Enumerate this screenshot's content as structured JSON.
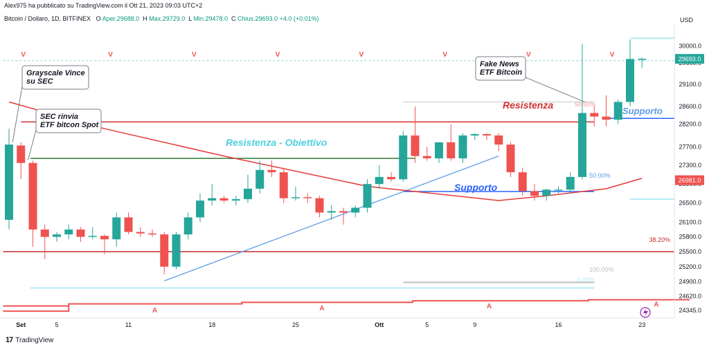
{
  "header": {
    "published": "Alex975 ha pubblicato su TradingView.com il Ott 21, 2023 09:03 UTC+2",
    "symbol": "Bitcoin / Dollaro, 1D, BITFINEX",
    "open_label": "O",
    "open_value": "Aper.29688.0",
    "high_label": "H",
    "high_value": "Max.29729.0",
    "low_label": "L",
    "low_value": "Min.29478.0",
    "close_label": "C",
    "close_value": "Chius.29693.0",
    "change": "+4.0 (+0.01%)"
  },
  "footer": {
    "brand_mark": "17",
    "brand": "TradingView"
  },
  "colors": {
    "up": "#26a69a",
    "down": "#ef5350",
    "resistance": "#d32f2f",
    "support_blue": "#2962ff",
    "text_cyan": "#4dd0e1",
    "green_line": "#2e7d32",
    "trend_blue": "#5b9be6",
    "ma": "#e53935"
  },
  "chart_data": {
    "type": "candlestick",
    "ylabel": "USD",
    "y_scale": "log",
    "ylim": [
      24200,
      30500
    ],
    "y_ticks": [
      "30000.0",
      "29600.0",
      "29100.0",
      "28600.0",
      "28200.0",
      "27700.0",
      "27300.0",
      "26900.0",
      "26500.0",
      "26100.0",
      "25800.0",
      "25500.0",
      "25200.0",
      "24900.0",
      "24620.0",
      "24345.0"
    ],
    "x_labels": [
      {
        "i": 1,
        "label": "Set",
        "bold": true
      },
      {
        "i": 4,
        "label": "5"
      },
      {
        "i": 10,
        "label": "11"
      },
      {
        "i": 17,
        "label": "18"
      },
      {
        "i": 24,
        "label": "25"
      },
      {
        "i": 31,
        "label": "Ott",
        "bold": true
      },
      {
        "i": 35,
        "label": "5"
      },
      {
        "i": 39,
        "label": "9"
      },
      {
        "i": 46,
        "label": "16"
      },
      {
        "i": 53,
        "label": "23"
      }
    ],
    "candles": [
      {
        "o": 26150,
        "h": 28100,
        "l": 25950,
        "c": 27750
      },
      {
        "o": 27730,
        "h": 27800,
        "l": 27000,
        "c": 27350
      },
      {
        "o": 27350,
        "h": 27400,
        "l": 25600,
        "c": 25950
      },
      {
        "o": 25950,
        "h": 26050,
        "l": 25350,
        "c": 25800
      },
      {
        "o": 25800,
        "h": 25900,
        "l": 25700,
        "c": 25850
      },
      {
        "o": 25850,
        "h": 26050,
        "l": 25750,
        "c": 25950
      },
      {
        "o": 25950,
        "h": 26000,
        "l": 25700,
        "c": 25800
      },
      {
        "o": 25800,
        "h": 26000,
        "l": 25750,
        "c": 25820
      },
      {
        "o": 25820,
        "h": 25850,
        "l": 25450,
        "c": 25750
      },
      {
        "o": 25750,
        "h": 26300,
        "l": 25600,
        "c": 26200
      },
      {
        "o": 26200,
        "h": 26300,
        "l": 25850,
        "c": 25900
      },
      {
        "o": 25900,
        "h": 26000,
        "l": 25800,
        "c": 25870
      },
      {
        "o": 25870,
        "h": 25950,
        "l": 25800,
        "c": 25850
      },
      {
        "o": 25850,
        "h": 25900,
        "l": 25050,
        "c": 25200
      },
      {
        "o": 25200,
        "h": 25900,
        "l": 25150,
        "c": 25850
      },
      {
        "o": 25850,
        "h": 26300,
        "l": 25750,
        "c": 26200
      },
      {
        "o": 26200,
        "h": 26700,
        "l": 26100,
        "c": 26550
      },
      {
        "o": 26550,
        "h": 26900,
        "l": 26450,
        "c": 26600
      },
      {
        "o": 26600,
        "h": 26650,
        "l": 26500,
        "c": 26550
      },
      {
        "o": 26550,
        "h": 26650,
        "l": 26450,
        "c": 26580
      },
      {
        "o": 26580,
        "h": 27100,
        "l": 26500,
        "c": 26800
      },
      {
        "o": 26800,
        "h": 27400,
        "l": 26700,
        "c": 27200
      },
      {
        "o": 27200,
        "h": 27400,
        "l": 27050,
        "c": 27150
      },
      {
        "o": 27150,
        "h": 27250,
        "l": 26500,
        "c": 26600
      },
      {
        "o": 26600,
        "h": 26850,
        "l": 26550,
        "c": 26620
      },
      {
        "o": 26620,
        "h": 26700,
        "l": 26500,
        "c": 26600
      },
      {
        "o": 26600,
        "h": 26650,
        "l": 26200,
        "c": 26300
      },
      {
        "o": 26300,
        "h": 26450,
        "l": 26150,
        "c": 26330
      },
      {
        "o": 26330,
        "h": 26400,
        "l": 26050,
        "c": 26300
      },
      {
        "o": 26300,
        "h": 26450,
        "l": 26200,
        "c": 26400
      },
      {
        "o": 26400,
        "h": 27000,
        "l": 26300,
        "c": 26900
      },
      {
        "o": 26900,
        "h": 27300,
        "l": 26800,
        "c": 27050
      },
      {
        "o": 27050,
        "h": 27150,
        "l": 26950,
        "c": 27000
      },
      {
        "o": 27000,
        "h": 28050,
        "l": 26950,
        "c": 27950
      },
      {
        "o": 27950,
        "h": 28600,
        "l": 27350,
        "c": 27500
      },
      {
        "o": 27500,
        "h": 27700,
        "l": 27400,
        "c": 27450
      },
      {
        "o": 27450,
        "h": 27800,
        "l": 27350,
        "c": 27800
      },
      {
        "o": 27800,
        "h": 28200,
        "l": 27400,
        "c": 27450
      },
      {
        "o": 27450,
        "h": 28000,
        "l": 27350,
        "c": 27950
      },
      {
        "o": 27950,
        "h": 28000,
        "l": 27850,
        "c": 27980
      },
      {
        "o": 27980,
        "h": 28000,
        "l": 27850,
        "c": 27950
      },
      {
        "o": 27950,
        "h": 28000,
        "l": 27600,
        "c": 27750
      },
      {
        "o": 27750,
        "h": 27800,
        "l": 27050,
        "c": 27150
      },
      {
        "o": 27150,
        "h": 27250,
        "l": 26650,
        "c": 26750
      },
      {
        "o": 26750,
        "h": 26900,
        "l": 26550,
        "c": 26650
      },
      {
        "o": 26650,
        "h": 26800,
        "l": 26550,
        "c": 26780
      },
      {
        "o": 26780,
        "h": 26850,
        "l": 26700,
        "c": 26780
      },
      {
        "o": 26780,
        "h": 27150,
        "l": 26700,
        "c": 27050
      },
      {
        "o": 27050,
        "h": 30050,
        "l": 27000,
        "c": 28450
      },
      {
        "o": 28450,
        "h": 28600,
        "l": 28150,
        "c": 28370
      },
      {
        "o": 28370,
        "h": 28850,
        "l": 28150,
        "c": 28300
      },
      {
        "o": 28300,
        "h": 28750,
        "l": 28200,
        "c": 28700
      },
      {
        "o": 28700,
        "h": 30150,
        "l": 28600,
        "c": 29690
      },
      {
        "o": 29688,
        "h": 29729,
        "l": 29478,
        "c": 29693
      }
    ],
    "moving_average": [
      [
        0,
        28700
      ],
      [
        8,
        28100
      ],
      [
        18,
        27500
      ],
      [
        30,
        26850
      ],
      [
        41,
        26550
      ],
      [
        45,
        26650
      ],
      [
        50,
        26800
      ],
      [
        53,
        27020
      ]
    ],
    "horizontal_levels": [
      {
        "name": "resistenza",
        "value": 28250,
        "x0": 1,
        "x1": 49,
        "color": "#d32f2f"
      },
      {
        "name": "resistenza-obiettivo",
        "value": 27450,
        "x0": 1.8,
        "x1": 34,
        "color": "#2e7d32"
      },
      {
        "name": "supporto-lower",
        "value": 26740,
        "x0": 33,
        "x1": 49,
        "color": "#2962ff"
      },
      {
        "name": "supporto-upper",
        "value": 28330,
        "x0": 50.2,
        "x1": 57,
        "color": "#2962ff"
      },
      {
        "name": "fib-38",
        "value": 25500,
        "x0": -0.5,
        "x1": 57,
        "color": "#c62828"
      },
      {
        "name": "fib-100",
        "value": 24890,
        "x0": 33,
        "x1": 49,
        "color": "#bdbdbd"
      },
      {
        "name": "fib-0",
        "value": 24780,
        "x0": 1.8,
        "x1": 49,
        "color": "#b2ebf2"
      },
      {
        "name": "fib-top",
        "value": 30180,
        "x0": 52,
        "x1": 57,
        "color": "#b2ebf2"
      },
      {
        "name": "fib-bottom",
        "value": 26580,
        "x0": 52,
        "x1": 57,
        "color": "#b2ebf2"
      },
      {
        "name": "fib-mid",
        "value": 28700,
        "x0": 33,
        "x1": 49,
        "color": "#e0e0e0"
      },
      {
        "name": "dotted-top",
        "value": 29650,
        "x0": -0.5,
        "x1": 57,
        "color": "#b2dfdb"
      }
    ],
    "trendline": [
      [
        13,
        24920
      ],
      [
        41,
        27500
      ]
    ],
    "step_line": [
      [
        -0.5,
        24330
      ],
      [
        5,
        24330
      ],
      [
        5,
        24470
      ],
      [
        19.5,
        24470
      ],
      [
        19.5,
        24500
      ],
      [
        33.8,
        24500
      ],
      [
        33.8,
        24530
      ],
      [
        48.5,
        24530
      ],
      [
        48.5,
        24550
      ],
      [
        57,
        24550
      ]
    ],
    "step_line_2": [
      [
        -0.5,
        24430
      ],
      [
        5,
        24430
      ]
    ],
    "v_markers": [
      1.2,
      8.5,
      15.5,
      22.5,
      29.5,
      36.5,
      43.5,
      50.5
    ],
    "v_marker_label": "V",
    "a_markers": [
      {
        "i": 12.2,
        "v": 24360
      },
      {
        "i": 26.2,
        "v": 24400
      },
      {
        "i": 40.2,
        "v": 24440
      },
      {
        "i": 54.2,
        "v": 24470
      }
    ],
    "a_marker_label": "A",
    "labels": {
      "resistenza": "Resistenza",
      "resistenza_obiettivo": "Resistenza - Obiettivo",
      "supporto_lower": "Supporto",
      "supporto_upper": "Supporto",
      "fib_38": "38.20%",
      "fib_50_a": "50.00%",
      "fib_50_b": "50.00%",
      "fib_100": "100.00%",
      "fib_0": "0.00%"
    },
    "callouts": [
      {
        "name": "callout-grayscale",
        "lines": [
          "Grayscale Vince",
          "su SEC"
        ],
        "target": [
          0.3,
          27800
        ]
      },
      {
        "name": "callout-sec",
        "lines": [
          "SEC rinvia",
          "ETF bitcon Spot"
        ],
        "target": [
          1.6,
          27420
        ]
      },
      {
        "name": "callout-fake-news",
        "lines": [
          "Fake News",
          "ETF Bitcoin"
        ],
        "target": [
          48.2,
          28700
        ]
      }
    ],
    "last_price": "29693.0",
    "ma_last": "26981.0"
  }
}
